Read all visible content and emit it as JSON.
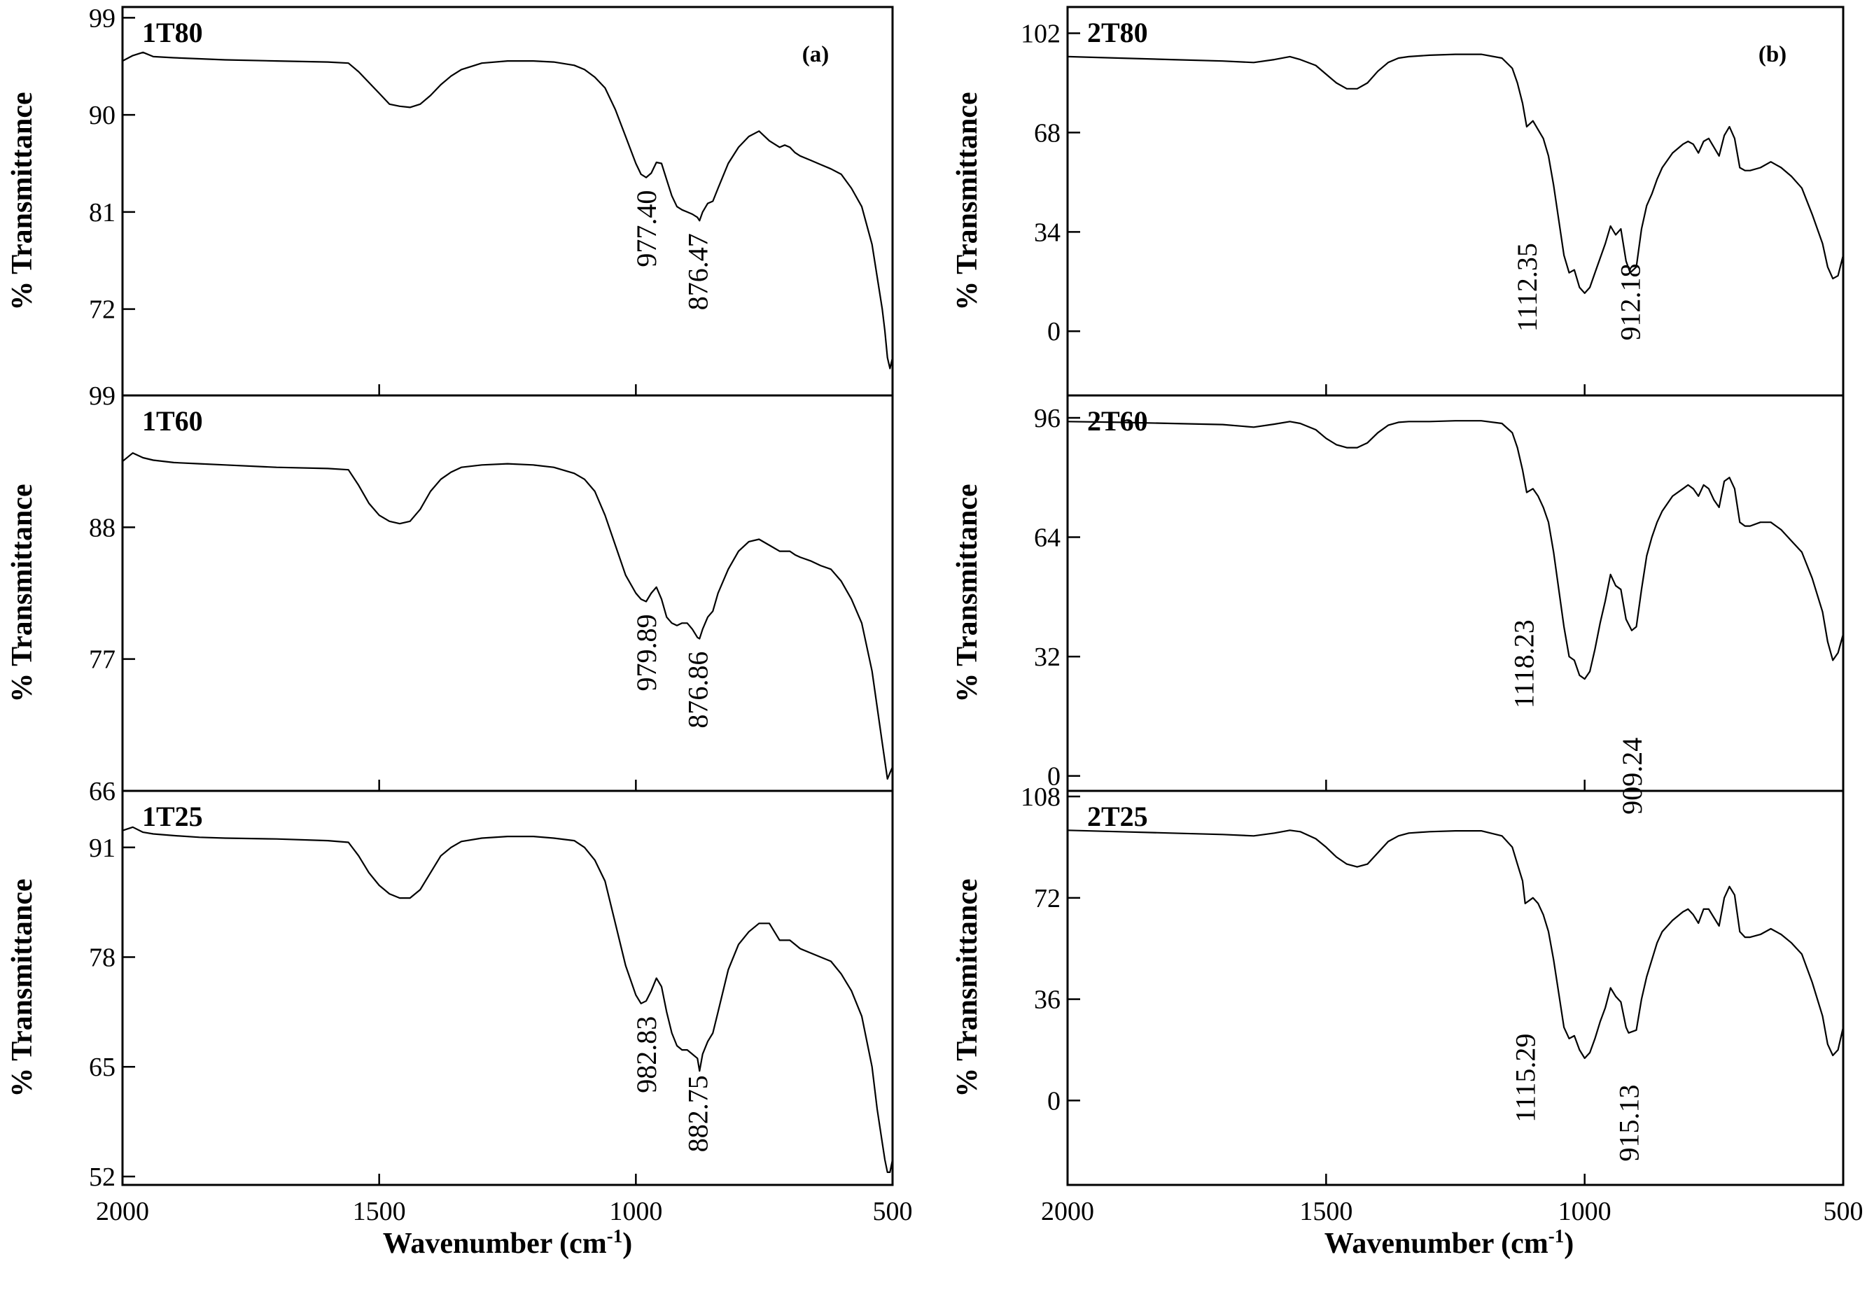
{
  "figure": {
    "panel_tags": [
      "(a)",
      "(b)"
    ],
    "x_title_text": "Wavenumber (cm",
    "x_title_sup": "-1",
    "x_title_close": ")"
  },
  "chart_data": [
    {
      "type": "line",
      "name": "1T80",
      "panel_tag": "(a)",
      "xlabel": "Wavenumber (cm-1)",
      "ylabel": "% Transmittance",
      "xlim": [
        2000,
        500
      ],
      "ylim": [
        64,
        100
      ],
      "yticks": [
        72,
        81,
        90,
        99
      ],
      "show_x_ticks": false,
      "x": [
        2000,
        1980,
        1960,
        1940,
        1900,
        1850,
        1800,
        1700,
        1600,
        1560,
        1540,
        1520,
        1500,
        1480,
        1460,
        1440,
        1420,
        1400,
        1380,
        1360,
        1340,
        1300,
        1250,
        1200,
        1160,
        1120,
        1100,
        1080,
        1060,
        1040,
        1020,
        1000,
        990,
        980,
        970,
        960,
        950,
        940,
        930,
        920,
        910,
        900,
        890,
        880,
        876,
        870,
        860,
        850,
        840,
        820,
        800,
        780,
        760,
        740,
        720,
        710,
        700,
        690,
        680,
        660,
        640,
        620,
        600,
        580,
        560,
        540,
        530,
        520,
        515,
        510,
        505,
        500
      ],
      "y": [
        95,
        95.5,
        95.8,
        95.4,
        95.3,
        95.2,
        95.1,
        95,
        94.9,
        94.8,
        94,
        93,
        92,
        91,
        90.8,
        90.7,
        91,
        91.8,
        92.8,
        93.6,
        94.2,
        94.8,
        95,
        95,
        94.9,
        94.6,
        94.2,
        93.5,
        92.5,
        90.5,
        88,
        85.5,
        84.5,
        84.2,
        84.6,
        85.6,
        85.5,
        84,
        82.5,
        81.5,
        81.2,
        81,
        80.8,
        80.5,
        80.2,
        81,
        81.8,
        82,
        83.2,
        85.5,
        87,
        88,
        88.5,
        87.6,
        87,
        87.2,
        87,
        86.5,
        86.2,
        85.8,
        85.4,
        85,
        84.5,
        83.2,
        81.5,
        78,
        75,
        72,
        70,
        67.5,
        66.5,
        67.5
      ],
      "annotations": [
        {
          "text": "977.40",
          "at": [
            977.4,
            84.2
          ],
          "label_x": 980
        },
        {
          "text": "876.47",
          "at": [
            876.5,
            80.2
          ],
          "label_x": 880
        }
      ]
    },
    {
      "type": "line",
      "name": "1T60",
      "xlabel": "Wavenumber (cm-1)",
      "ylabel": "% Transmittance",
      "xlim": [
        2000,
        500
      ],
      "ylim": [
        66,
        99
      ],
      "yticks": [
        66,
        77,
        88,
        99
      ],
      "show_x_ticks": false,
      "x": [
        2000,
        1980,
        1960,
        1940,
        1900,
        1850,
        1800,
        1700,
        1600,
        1560,
        1540,
        1520,
        1500,
        1480,
        1460,
        1440,
        1420,
        1400,
        1380,
        1360,
        1340,
        1300,
        1250,
        1200,
        1160,
        1120,
        1100,
        1080,
        1060,
        1040,
        1020,
        1000,
        990,
        980,
        970,
        960,
        950,
        940,
        930,
        920,
        910,
        900,
        890,
        880,
        876,
        870,
        860,
        850,
        840,
        820,
        800,
        780,
        760,
        740,
        720,
        710,
        700,
        690,
        680,
        660,
        640,
        620,
        600,
        580,
        560,
        540,
        530,
        520,
        515,
        510,
        505,
        500
      ],
      "y": [
        93.5,
        94.2,
        93.8,
        93.6,
        93.4,
        93.3,
        93.2,
        93,
        92.9,
        92.8,
        91.5,
        90,
        89,
        88.5,
        88.3,
        88.5,
        89.5,
        91,
        92,
        92.6,
        93,
        93.2,
        93.3,
        93.2,
        93,
        92.5,
        92,
        91,
        89,
        86.5,
        84,
        82.5,
        82,
        81.8,
        82.5,
        83,
        82,
        80.5,
        80,
        79.8,
        80,
        80,
        79.5,
        78.8,
        78.7,
        79.5,
        80.5,
        81,
        82.5,
        84.5,
        86,
        86.8,
        87,
        86.5,
        86,
        86,
        86,
        85.7,
        85.5,
        85.2,
        84.8,
        84.5,
        83.5,
        82,
        80,
        76,
        73,
        70,
        68.5,
        67,
        67.5,
        68
      ],
      "annotations": [
        {
          "text": "979.89",
          "at": [
            979.9,
            81.8
          ],
          "label_x": 980
        },
        {
          "text": "876.86",
          "at": [
            876.9,
            78.7
          ],
          "label_x": 880
        }
      ]
    },
    {
      "type": "line",
      "name": "1T25",
      "xlabel": "Wavenumber (cm-1)",
      "ylabel": "% Transmittance",
      "xlim": [
        2000,
        500
      ],
      "ylim": [
        51,
        97.7
      ],
      "yticks": [
        52,
        65,
        78,
        91
      ],
      "show_x_ticks": true,
      "x": [
        2000,
        1980,
        1960,
        1940,
        1900,
        1850,
        1800,
        1700,
        1600,
        1560,
        1540,
        1520,
        1500,
        1480,
        1460,
        1440,
        1420,
        1400,
        1380,
        1360,
        1340,
        1300,
        1250,
        1200,
        1160,
        1120,
        1100,
        1080,
        1060,
        1040,
        1020,
        1000,
        990,
        980,
        970,
        960,
        950,
        940,
        930,
        920,
        910,
        900,
        890,
        880,
        876,
        870,
        860,
        850,
        840,
        820,
        800,
        780,
        760,
        740,
        720,
        710,
        700,
        690,
        680,
        660,
        640,
        620,
        600,
        580,
        560,
        540,
        530,
        520,
        515,
        510,
        505,
        500
      ],
      "y": [
        93,
        93.4,
        92.8,
        92.6,
        92.4,
        92.2,
        92.1,
        92,
        91.8,
        91.6,
        90,
        88,
        86.5,
        85.5,
        85,
        85,
        86,
        88,
        90,
        91,
        91.7,
        92.1,
        92.3,
        92.3,
        92.1,
        91.8,
        91,
        89.5,
        87,
        82,
        77,
        73.5,
        72.5,
        72.8,
        74,
        75.5,
        74.5,
        71.5,
        69,
        67.5,
        67,
        67,
        66.5,
        66,
        64.5,
        66.5,
        68,
        69,
        71.5,
        76.5,
        79.5,
        81,
        82,
        82,
        80,
        80,
        80,
        79.5,
        79,
        78.5,
        78,
        77.5,
        76,
        74,
        71,
        65,
        60,
        56,
        54,
        52.5,
        52.5,
        54
      ],
      "annotations": [
        {
          "text": "982.83",
          "at": [
            982.8,
            72.5
          ],
          "label_x": 980
        },
        {
          "text": "882.75",
          "at": [
            882.8,
            65.5
          ],
          "label_x": 880
        }
      ]
    },
    {
      "type": "line",
      "name": "2T80",
      "panel_tag": "(b)",
      "xlabel": "Wavenumber (cm-1)",
      "ylabel": "% Transmittance",
      "xlim": [
        2000,
        500
      ],
      "ylim": [
        -22,
        111
      ],
      "yticks": [
        0,
        34,
        68,
        102
      ],
      "show_x_ticks": false,
      "x": [
        2000,
        1900,
        1800,
        1700,
        1640,
        1600,
        1570,
        1550,
        1520,
        1500,
        1480,
        1460,
        1440,
        1420,
        1400,
        1380,
        1360,
        1340,
        1300,
        1250,
        1200,
        1160,
        1140,
        1130,
        1120,
        1112,
        1100,
        1090,
        1080,
        1070,
        1060,
        1050,
        1040,
        1030,
        1020,
        1010,
        1000,
        990,
        980,
        970,
        960,
        950,
        940,
        930,
        920,
        912,
        900,
        890,
        880,
        870,
        860,
        850,
        830,
        810,
        800,
        790,
        780,
        770,
        760,
        750,
        740,
        730,
        720,
        710,
        700,
        690,
        680,
        660,
        640,
        620,
        600,
        580,
        560,
        540,
        530,
        520,
        510,
        500
      ],
      "y": [
        94,
        93.5,
        93,
        92.5,
        92,
        93,
        94,
        93,
        91,
        88,
        85,
        83,
        83,
        85,
        89,
        92,
        93.5,
        94,
        94.5,
        94.8,
        94.8,
        93.5,
        90,
        85,
        78,
        70,
        72,
        69,
        66,
        60,
        50,
        38,
        26,
        20,
        21,
        15,
        13,
        15,
        20,
        25,
        30,
        36,
        33,
        35,
        24,
        20,
        22,
        35,
        43,
        47,
        52,
        56,
        61,
        64,
        65,
        64,
        61,
        65,
        66,
        63,
        60,
        67,
        70,
        66,
        56,
        55,
        55,
        56,
        58,
        56,
        53,
        49,
        40,
        30,
        22,
        18,
        19,
        26
      ]
    },
    {
      "type": "line",
      "name": "2T60",
      "xlabel": "Wavenumber (cm-1)",
      "ylabel": "% Transmittance",
      "xlim": [
        2000,
        500
      ],
      "ylim": [
        -4,
        102
      ],
      "yticks": [
        0,
        32,
        64,
        96
      ],
      "show_x_ticks": false,
      "x": [
        2000,
        1900,
        1800,
        1700,
        1640,
        1600,
        1570,
        1550,
        1520,
        1500,
        1480,
        1460,
        1440,
        1420,
        1400,
        1380,
        1360,
        1340,
        1300,
        1250,
        1200,
        1160,
        1140,
        1130,
        1120,
        1112,
        1100,
        1090,
        1080,
        1070,
        1060,
        1050,
        1040,
        1030,
        1020,
        1010,
        1000,
        990,
        980,
        970,
        960,
        950,
        940,
        930,
        920,
        909,
        900,
        890,
        880,
        870,
        860,
        850,
        830,
        810,
        800,
        790,
        780,
        770,
        760,
        750,
        740,
        730,
        720,
        710,
        700,
        690,
        680,
        660,
        640,
        620,
        600,
        580,
        560,
        540,
        530,
        520,
        510,
        500
      ],
      "y": [
        95,
        94.8,
        94.5,
        94.2,
        93.5,
        94.3,
        95,
        94.5,
        92.8,
        90.5,
        88.8,
        88,
        88,
        89.3,
        92,
        94,
        94.8,
        95,
        95,
        95.2,
        95.2,
        94.5,
        92,
        88,
        82,
        76,
        77,
        75,
        72,
        68,
        60,
        50,
        40,
        32,
        31,
        27,
        26,
        28,
        34,
        41,
        47,
        54,
        51,
        50,
        42,
        39,
        40,
        50,
        59,
        64,
        68,
        71,
        75,
        77,
        78,
        77,
        75,
        78,
        77,
        74,
        72,
        79,
        80,
        77,
        68,
        67,
        67,
        68,
        68,
        66,
        63,
        60,
        53,
        44,
        36,
        31,
        33,
        38
      ]
    },
    {
      "type": "line",
      "name": "2T25",
      "xlabel": "Wavenumber (cm-1)",
      "ylabel": "% Transmittance",
      "xlim": [
        2000,
        500
      ],
      "ylim": [
        -30,
        110
      ],
      "yticks": [
        0,
        36,
        72,
        108
      ],
      "show_x_ticks": true,
      "x": [
        2000,
        1900,
        1800,
        1700,
        1640,
        1600,
        1570,
        1550,
        1520,
        1500,
        1480,
        1460,
        1440,
        1420,
        1400,
        1380,
        1360,
        1340,
        1300,
        1250,
        1200,
        1160,
        1140,
        1130,
        1120,
        1115,
        1100,
        1090,
        1080,
        1070,
        1060,
        1050,
        1040,
        1030,
        1020,
        1010,
        1000,
        990,
        980,
        970,
        960,
        950,
        940,
        930,
        920,
        915,
        900,
        890,
        880,
        870,
        860,
        850,
        830,
        810,
        800,
        790,
        780,
        770,
        760,
        750,
        740,
        730,
        720,
        710,
        700,
        690,
        680,
        660,
        640,
        620,
        600,
        580,
        560,
        540,
        530,
        520,
        510,
        500
      ],
      "y": [
        96,
        95.5,
        95,
        94.5,
        94,
        95,
        96,
        95.5,
        93,
        90,
        86.5,
        84,
        83,
        84,
        88,
        92,
        94,
        95,
        95.5,
        95.8,
        95.8,
        94,
        90,
        84,
        78,
        70,
        72,
        70,
        66,
        60,
        50,
        38,
        26,
        22,
        23,
        18,
        15,
        17,
        22,
        28,
        33,
        40,
        37,
        35,
        26,
        24,
        25,
        36,
        44,
        50,
        56,
        60,
        64,
        67,
        68,
        66,
        63,
        68,
        68,
        65,
        62,
        72,
        76,
        73,
        60,
        58,
        58,
        59,
        61,
        59,
        56,
        52,
        42,
        30,
        20,
        16,
        18,
        26
      ]
    }
  ]
}
